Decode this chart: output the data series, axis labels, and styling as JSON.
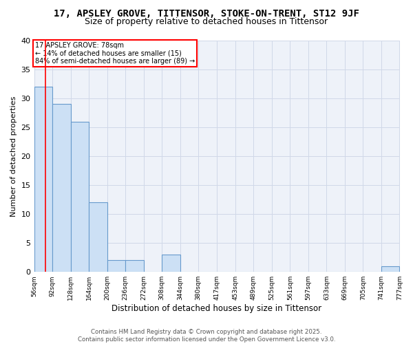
{
  "title": "17, APSLEY GROVE, TITTENSOR, STOKE-ON-TRENT, ST12 9JF",
  "subtitle": "Size of property relative to detached houses in Tittensor",
  "xlabel": "Distribution of detached houses by size in Tittensor",
  "ylabel": "Number of detached properties",
  "bins": [
    56,
    92,
    128,
    164,
    200,
    236,
    272,
    308,
    344,
    380,
    417,
    453,
    489,
    525,
    561,
    597,
    633,
    669,
    705,
    741,
    777
  ],
  "counts": [
    32,
    29,
    26,
    12,
    2,
    2,
    0,
    3,
    0,
    0,
    0,
    0,
    0,
    0,
    0,
    0,
    0,
    0,
    0,
    1,
    0
  ],
  "bar_color": "#cce0f5",
  "bar_edge_color": "#6699cc",
  "grid_color": "#d0d8e8",
  "background_color": "#eef2f9",
  "red_line_x": 78,
  "annotation_text": "17 APSLEY GROVE: 78sqm\n← 14% of detached houses are smaller (15)\n84% of semi-detached houses are larger (89) →",
  "annotation_box_color": "white",
  "annotation_box_edge": "red",
  "ylim": [
    0,
    40
  ],
  "yticks": [
    0,
    5,
    10,
    15,
    20,
    25,
    30,
    35,
    40
  ],
  "footer": "Contains HM Land Registry data © Crown copyright and database right 2025.\nContains public sector information licensed under the Open Government Licence v3.0.",
  "title_fontsize": 10,
  "subtitle_fontsize": 9
}
